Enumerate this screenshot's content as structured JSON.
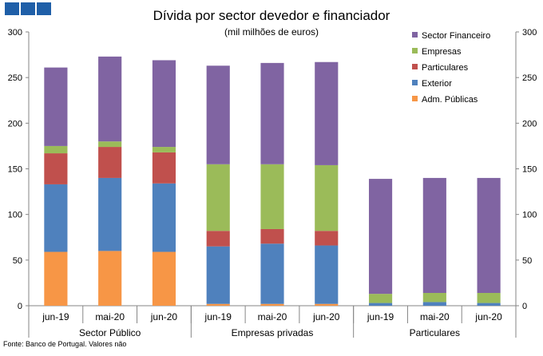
{
  "logo": {
    "color": "#1f5fa8",
    "squares": 3
  },
  "chart_data": {
    "type": "bar",
    "stacked": true,
    "title": "Dívida por sector devedor e financiador",
    "subtitle": "(mil milhões de euros)",
    "ylim": [
      0,
      300
    ],
    "yticks": [
      0,
      50,
      100,
      150,
      200,
      250,
      300
    ],
    "secondary_axis": true,
    "groups": [
      {
        "label": "Sector Público",
        "categories": [
          "jun-19",
          "mai-20",
          "jun-20"
        ]
      },
      {
        "label": "Empresas privadas",
        "categories": [
          "jun-19",
          "mai-20",
          "jun-20"
        ]
      },
      {
        "label": "Particulares",
        "categories": [
          "jun-19",
          "mai-20",
          "jun-20"
        ]
      }
    ],
    "series": [
      {
        "name": "Adm. Públicas",
        "color": "#f79646",
        "values": [
          59,
          60,
          59,
          2,
          2,
          2,
          0,
          0,
          0
        ]
      },
      {
        "name": "Exterior",
        "color": "#4f81bd",
        "values": [
          74,
          80,
          75,
          63,
          66,
          64,
          3,
          4,
          3
        ]
      },
      {
        "name": "Particulares",
        "color": "#c0504d",
        "values": [
          34,
          34,
          34,
          17,
          16,
          16,
          0,
          0,
          0
        ]
      },
      {
        "name": "Empresas",
        "color": "#9bbb59",
        "values": [
          8,
          6,
          6,
          73,
          71,
          72,
          10,
          10,
          11
        ]
      },
      {
        "name": "Sector Financeiro",
        "color": "#8064a2",
        "values": [
          86,
          93,
          95,
          108,
          111,
          113,
          126,
          126,
          126
        ]
      }
    ],
    "legend_order": [
      "Sector Financeiro",
      "Empresas",
      "Particulares",
      "Exterior",
      "Adm. Públicas"
    ],
    "legend_position": "top-right",
    "grid": false
  },
  "source_note": "Fonte: Banco de Portugal. Valores não"
}
